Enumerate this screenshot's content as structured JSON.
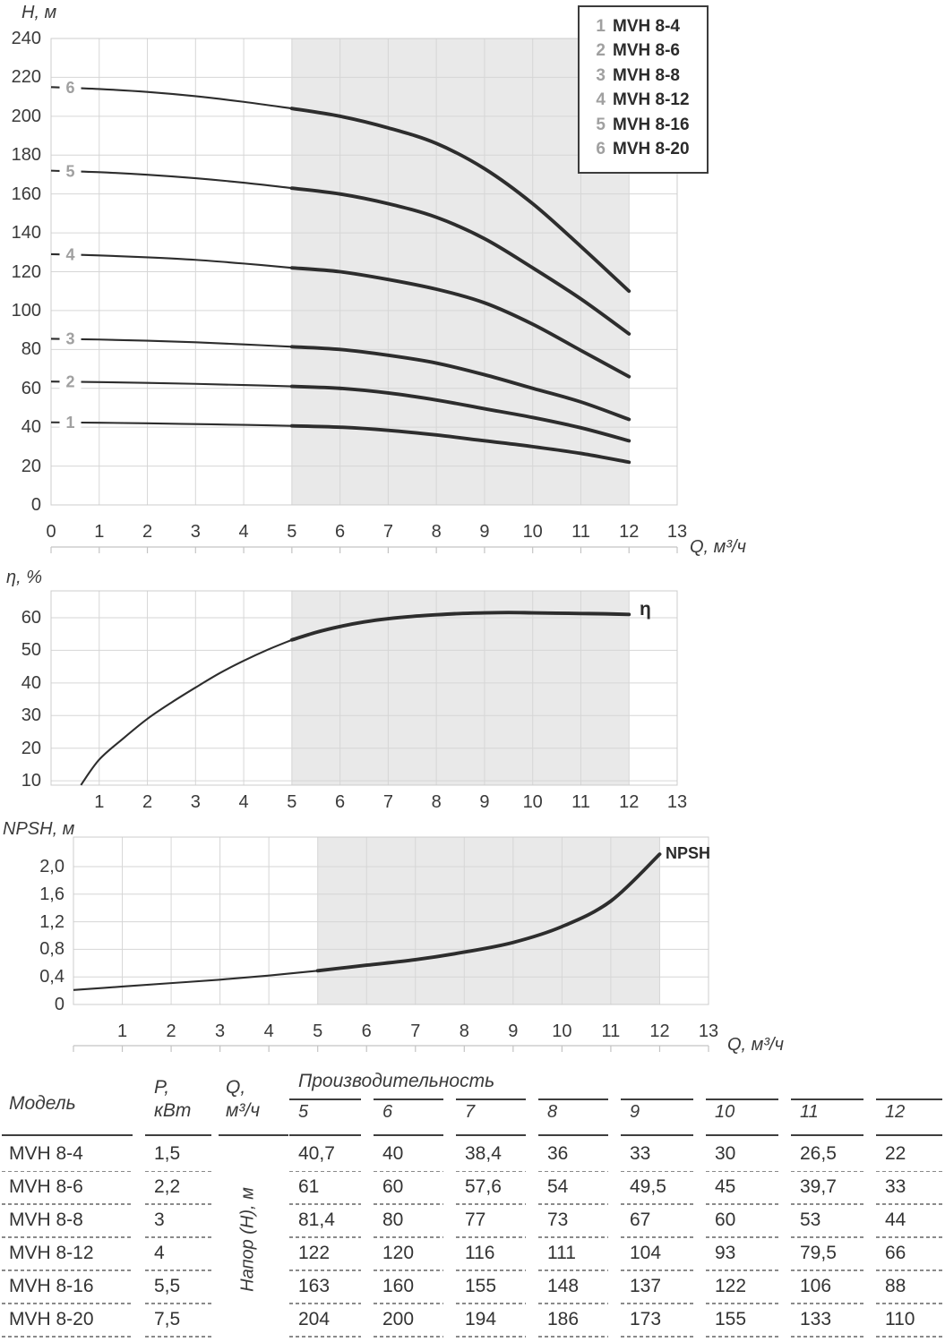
{
  "colors": {
    "curve": "#2d2d2d",
    "grid": "#d6d6d6",
    "shade": "#e9e9e9",
    "border": "#cccccc",
    "ruler": "#c4c4c4",
    "text": "#3a3a3a",
    "muted_number": "#a0a0a0",
    "table_line": "#3e3e3e"
  },
  "legend": {
    "entries": [
      {
        "index": "1",
        "label": "MVH 8-4"
      },
      {
        "index": "2",
        "label": "MVH 8-6"
      },
      {
        "index": "3",
        "label": "MVH 8-8"
      },
      {
        "index": "4",
        "label": "MVH 8-12"
      },
      {
        "index": "5",
        "label": "MVH 8-16"
      },
      {
        "index": "6",
        "label": "MVH 8-20"
      }
    ]
  },
  "chart_data": [
    {
      "type": "line",
      "title": "Pump head curves H(Q)",
      "ylabel": "H, м",
      "xlabel": "Q, м³/ч",
      "xlim": [
        0,
        13
      ],
      "ylim": [
        0,
        240
      ],
      "grid": true,
      "x_ticks": [
        0,
        1,
        2,
        3,
        4,
        5,
        6,
        7,
        8,
        9,
        10,
        11,
        12,
        13
      ],
      "y_ticks": [
        0,
        20,
        40,
        60,
        80,
        100,
        120,
        140,
        160,
        180,
        200,
        220,
        240
      ],
      "working_range": [
        5,
        12
      ],
      "series": [
        {
          "index": "1",
          "name": "MVH 8-4",
          "points": [
            [
              0,
              42.5
            ],
            [
              1,
              42.3
            ],
            [
              2,
              42
            ],
            [
              3,
              41.6
            ],
            [
              4,
              41.2
            ],
            [
              5,
              40.7
            ],
            [
              6,
              40
            ],
            [
              7,
              38.4
            ],
            [
              8,
              36
            ],
            [
              9,
              33
            ],
            [
              10,
              30
            ],
            [
              11,
              26.5
            ],
            [
              12,
              22
            ]
          ]
        },
        {
          "index": "2",
          "name": "MVH 8-6",
          "points": [
            [
              0,
              63.5
            ],
            [
              1,
              63.2
            ],
            [
              2,
              62.8
            ],
            [
              3,
              62.3
            ],
            [
              4,
              61.7
            ],
            [
              5,
              61
            ],
            [
              6,
              60
            ],
            [
              7,
              57.6
            ],
            [
              8,
              54
            ],
            [
              9,
              49.5
            ],
            [
              10,
              45
            ],
            [
              11,
              39.7
            ],
            [
              12,
              33
            ]
          ]
        },
        {
          "index": "3",
          "name": "MVH 8-8",
          "points": [
            [
              0,
              85.5
            ],
            [
              1,
              85.1
            ],
            [
              2,
              84.5
            ],
            [
              3,
              83.7
            ],
            [
              4,
              82.6
            ],
            [
              5,
              81.4
            ],
            [
              6,
              80
            ],
            [
              7,
              77
            ],
            [
              8,
              73
            ],
            [
              9,
              67
            ],
            [
              10,
              60
            ],
            [
              11,
              53
            ],
            [
              12,
              44
            ]
          ]
        },
        {
          "index": "4",
          "name": "MVH 8-12",
          "points": [
            [
              0,
              129
            ],
            [
              1,
              128.4
            ],
            [
              2,
              127.4
            ],
            [
              3,
              126.1
            ],
            [
              4,
              124.2
            ],
            [
              5,
              122
            ],
            [
              6,
              120
            ],
            [
              7,
              116
            ],
            [
              8,
              111
            ],
            [
              9,
              104
            ],
            [
              10,
              93
            ],
            [
              11,
              79.5
            ],
            [
              12,
              66
            ]
          ]
        },
        {
          "index": "5",
          "name": "MVH 8-16",
          "points": [
            [
              0,
              172
            ],
            [
              1,
              171.2
            ],
            [
              2,
              169.9
            ],
            [
              3,
              168.1
            ],
            [
              4,
              165.8
            ],
            [
              5,
              163
            ],
            [
              6,
              160
            ],
            [
              7,
              155
            ],
            [
              8,
              148
            ],
            [
              9,
              137
            ],
            [
              10,
              122
            ],
            [
              11,
              106
            ],
            [
              12,
              88
            ]
          ]
        },
        {
          "index": "6",
          "name": "MVH 8-20",
          "points": [
            [
              0,
              215
            ],
            [
              1,
              214
            ],
            [
              2,
              212.5
            ],
            [
              3,
              210.3
            ],
            [
              4,
              207.4
            ],
            [
              5,
              204
            ],
            [
              6,
              200
            ],
            [
              7,
              194
            ],
            [
              8,
              186
            ],
            [
              9,
              173
            ],
            [
              10,
              155
            ],
            [
              11,
              133
            ],
            [
              12,
              110
            ]
          ]
        }
      ]
    },
    {
      "type": "line",
      "title": "Efficiency curve η(Q)",
      "ylabel": "η, %",
      "xlabel": "",
      "curve_label": "η",
      "xlim": [
        0,
        13
      ],
      "ylim": [
        10,
        60
      ],
      "grid": true,
      "x_ticks": [
        1,
        2,
        3,
        4,
        5,
        6,
        7,
        8,
        9,
        10,
        11,
        12,
        13
      ],
      "y_ticks": [
        10,
        20,
        30,
        40,
        50,
        60
      ],
      "working_range": [
        5,
        12
      ],
      "points": [
        [
          0.62,
          8.7
        ],
        [
          1,
          16.5
        ],
        [
          1.5,
          23
        ],
        [
          2,
          29
        ],
        [
          2.5,
          34
        ],
        [
          3,
          38.6
        ],
        [
          3.5,
          43
        ],
        [
          4,
          46.8
        ],
        [
          4.5,
          50.2
        ],
        [
          5,
          53.2
        ],
        [
          5.5,
          55.5
        ],
        [
          6,
          57.3
        ],
        [
          6.5,
          58.7
        ],
        [
          7,
          59.7
        ],
        [
          7.5,
          60.4
        ],
        [
          8,
          60.9
        ],
        [
          8.5,
          61.3
        ],
        [
          9,
          61.5
        ],
        [
          9.5,
          61.6
        ],
        [
          10,
          61.5
        ],
        [
          10.5,
          61.4
        ],
        [
          11,
          61.3
        ],
        [
          11.5,
          61.2
        ],
        [
          12,
          61
        ]
      ]
    },
    {
      "type": "line",
      "title": "NPSH curve",
      "ylabel": "NPSH, м",
      "xlabel": "Q, м³/ч",
      "curve_label": "NPSH",
      "xlim": [
        0,
        13
      ],
      "ylim": [
        0,
        2.4
      ],
      "grid": true,
      "x_ticks": [
        1,
        2,
        3,
        4,
        5,
        6,
        7,
        8,
        9,
        10,
        11,
        12,
        13
      ],
      "y_ticks": [
        {
          "label": "0",
          "value": 0
        },
        {
          "label": "0,4",
          "value": 0.4
        },
        {
          "label": "0,8",
          "value": 0.8
        },
        {
          "label": "1,2",
          "value": 1.2
        },
        {
          "label": "1,6",
          "value": 1.6
        },
        {
          "label": "2,0",
          "value": 2
        }
      ],
      "working_range": [
        5,
        12
      ],
      "points": [
        [
          0,
          0.21
        ],
        [
          1,
          0.26
        ],
        [
          2,
          0.31
        ],
        [
          3,
          0.36
        ],
        [
          4,
          0.42
        ],
        [
          5,
          0.49
        ],
        [
          6,
          0.57
        ],
        [
          7,
          0.65
        ],
        [
          8,
          0.76
        ],
        [
          9,
          0.9
        ],
        [
          10,
          1.13
        ],
        [
          11,
          1.5
        ],
        [
          12,
          2.18
        ]
      ]
    }
  ],
  "table": {
    "headers": {
      "model": "Модель",
      "power_line1": "P,",
      "power_line2": "кВт",
      "flow_line1": "Q,",
      "flow_line2": "м³/ч",
      "performance": "Производительность",
      "head_rotated": "Напор (H), м"
    },
    "flow_columns": [
      "5",
      "6",
      "7",
      "8",
      "9",
      "10",
      "11",
      "12"
    ],
    "rows": [
      {
        "model": "MVH 8-4",
        "power_kw": "1,5",
        "head_m": [
          "40,7",
          "40",
          "38,4",
          "36",
          "33",
          "30",
          "26,5",
          "22"
        ]
      },
      {
        "model": "MVH 8-6",
        "power_kw": "2,2",
        "head_m": [
          "61",
          "60",
          "57,6",
          "54",
          "49,5",
          "45",
          "39,7",
          "33"
        ]
      },
      {
        "model": "MVH 8-8",
        "power_kw": "3",
        "head_m": [
          "81,4",
          "80",
          "77",
          "73",
          "67",
          "60",
          "53",
          "44"
        ]
      },
      {
        "model": "MVH 8-12",
        "power_kw": "4",
        "head_m": [
          "122",
          "120",
          "116",
          "111",
          "104",
          "93",
          "79,5",
          "66"
        ]
      },
      {
        "model": "MVH 8-16",
        "power_kw": "5,5",
        "head_m": [
          "163",
          "160",
          "155",
          "148",
          "137",
          "122",
          "106",
          "88"
        ]
      },
      {
        "model": "MVH 8-20",
        "power_kw": "7,5",
        "head_m": [
          "204",
          "200",
          "194",
          "186",
          "173",
          "155",
          "133",
          "110"
        ]
      }
    ]
  }
}
